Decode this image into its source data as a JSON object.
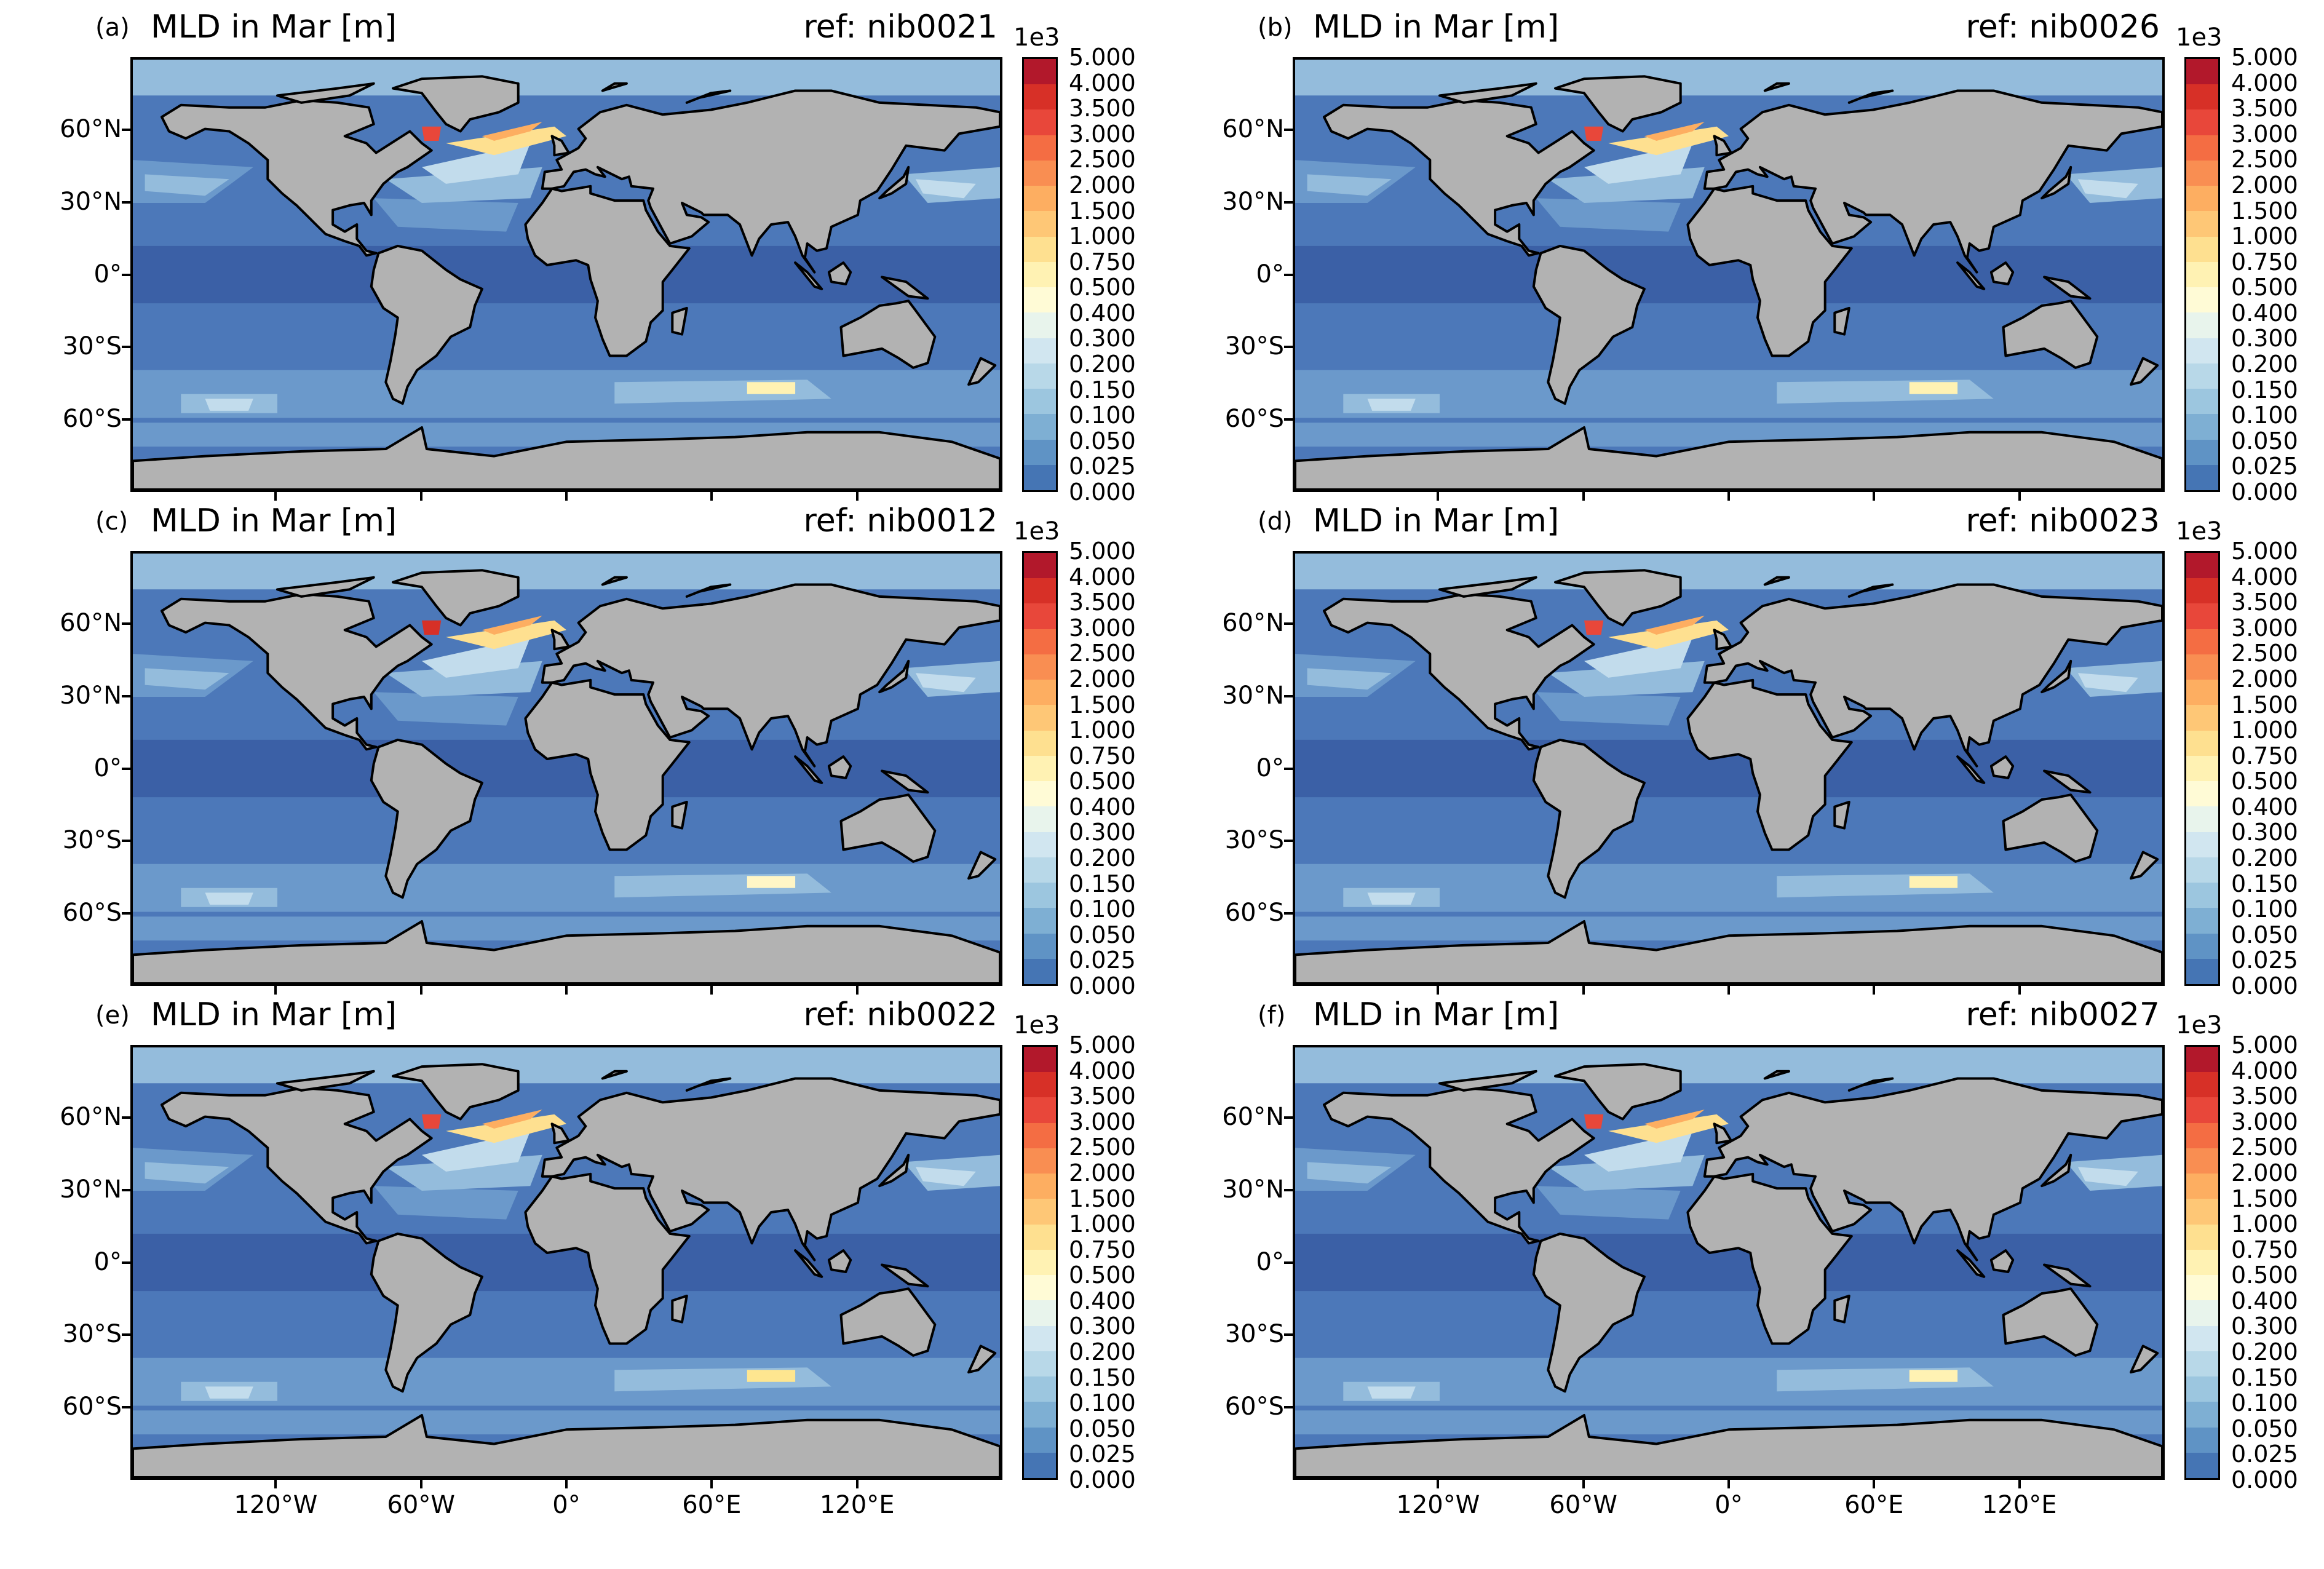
{
  "panels": [
    {
      "letter": "(a)",
      "title": "MLD in Mar [m]",
      "ref": "ref: nib0021",
      "show_lon": false,
      "na_max": "#e8473a",
      "so_max": "#fff2b3"
    },
    {
      "letter": "(b)",
      "title": "MLD in Mar [m]",
      "ref": "ref: nib0026",
      "show_lon": false,
      "na_max": "#e8473a",
      "so_max": "#fff2b3"
    },
    {
      "letter": "(c)",
      "title": "MLD in Mar [m]",
      "ref": "ref: nib0012",
      "show_lon": false,
      "na_max": "#d73027",
      "so_max": "#fff6c6"
    },
    {
      "letter": "(d)",
      "title": "MLD in Mar [m]",
      "ref": "ref: nib0023",
      "show_lon": false,
      "na_max": "#e8473a",
      "so_max": "#fff2b3"
    },
    {
      "letter": "(e)",
      "title": "MLD in Mar [m]",
      "ref": "ref: nib0022",
      "show_lon": true,
      "na_max": "#e8473a",
      "so_max": "#fee690"
    },
    {
      "letter": "(f)",
      "title": "MLD in Mar [m]",
      "ref": "ref: nib0027",
      "show_lon": true,
      "na_max": "#e8473a",
      "so_max": "#fff2b3"
    }
  ],
  "lat_labels": [
    "60°N",
    "30°N",
    "0°",
    "30°S",
    "60°S"
  ],
  "lon_labels": [
    "120°W",
    "60°W",
    "0°",
    "60°E",
    "120°E"
  ],
  "colorbar": {
    "exponent": "1e3",
    "ticks": [
      "5.000",
      "4.000",
      "3.500",
      "3.000",
      "2.500",
      "2.000",
      "1.500",
      "1.000",
      "0.750",
      "0.500",
      "0.400",
      "0.300",
      "0.200",
      "0.150",
      "0.100",
      "0.050",
      "0.025",
      "0.000"
    ],
    "colors": [
      "#b2182b",
      "#d73027",
      "#e8473a",
      "#f46d43",
      "#f98e52",
      "#fdae61",
      "#fec776",
      "#fee090",
      "#fff2b3",
      "#fffbd6",
      "#e8f4ec",
      "#d1e6f0",
      "#b8d8e8",
      "#9cc6df",
      "#7eafd3",
      "#5f93c5",
      "#4575b4"
    ]
  },
  "colors": {
    "land": "#b2b2b2",
    "coast": "#000000",
    "deep": "#3b60a6",
    "ocean": "#4c78b9",
    "mid": "#6b99cb",
    "light": "#94bcdc",
    "pale": "#c2dcec"
  }
}
